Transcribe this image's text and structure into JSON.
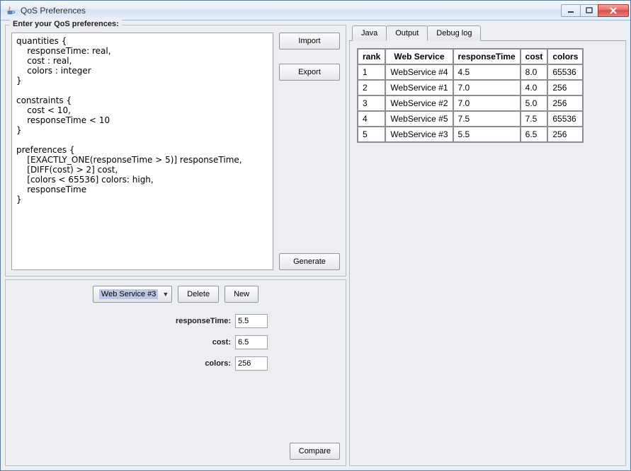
{
  "window": {
    "title": "QoS Preferences"
  },
  "left": {
    "group_legend": "Enter your QoS preferences:",
    "code": "quantities {\n    responseTime: real,\n    cost : real,\n    colors : integer\n}\n\nconstraints {\n    cost < 10,\n    responseTime < 10\n}\n\npreferences {\n    [EXACTLY_ONE(responseTime > 5)] responseTime,\n    [DIFF(cost) > 2] cost,\n    [colors < 65536] colors: high,\n    responseTime\n}",
    "buttons": {
      "import": "Import",
      "export": "Export",
      "generate": "Generate"
    },
    "detail": {
      "selected": "Web Service #3",
      "delete": "Delete",
      "new": "New",
      "fields": {
        "responseTime_label": "responseTime:",
        "responseTime_value": "5.5",
        "cost_label": "cost:",
        "cost_value": "6.5",
        "colors_label": "colors:",
        "colors_value": "256"
      },
      "compare": "Compare"
    }
  },
  "right": {
    "tabs": {
      "java": "Java",
      "output": "Output",
      "debug": "Debug log"
    },
    "active_tab": "output",
    "table": {
      "columns": [
        "rank",
        "Web Service",
        "responseTime",
        "cost",
        "colors"
      ],
      "rows": [
        [
          "1",
          "WebService #4",
          "4.5",
          "8.0",
          "65536"
        ],
        [
          "2",
          "WebService #1",
          "7.0",
          "4.0",
          "256"
        ],
        [
          "3",
          "WebService #2",
          "7.0",
          "5.0",
          "256"
        ],
        [
          "4",
          "WebService #5",
          "7.5",
          "7.5",
          "65536"
        ],
        [
          "5",
          "WebService #3",
          "5.5",
          "6.5",
          "256"
        ]
      ]
    }
  },
  "colors": {
    "window_border": "#5a7ca0",
    "panel_bg": "#eceef1",
    "border": "#b8bcc4",
    "table_border": "#8a8e96",
    "close_red": "#d84b45"
  }
}
